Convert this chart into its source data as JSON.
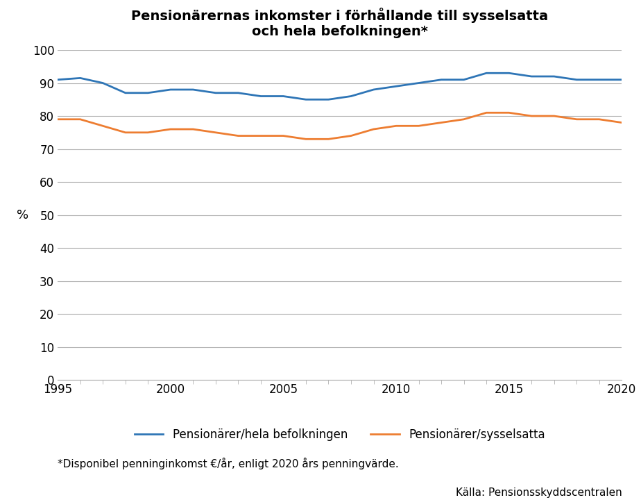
{
  "title_line1": "Pensionärernas inkomster i förhållande till sysselsatta",
  "title_line2": "och hela befolkningen*",
  "years": [
    1995,
    1996,
    1997,
    1998,
    1999,
    2000,
    2001,
    2002,
    2003,
    2004,
    2005,
    2006,
    2007,
    2008,
    2009,
    2010,
    2011,
    2012,
    2013,
    2014,
    2015,
    2016,
    2017,
    2018,
    2019,
    2020
  ],
  "hela_befolkningen": [
    91,
    91.5,
    90,
    87,
    87,
    88,
    88,
    87,
    87,
    86,
    86,
    85,
    85,
    86,
    88,
    89,
    90,
    91,
    91,
    93,
    93,
    92,
    92,
    91,
    91,
    91
  ],
  "sysselsatta": [
    79,
    79,
    77,
    75,
    75,
    76,
    76,
    75,
    74,
    74,
    74,
    73,
    73,
    74,
    76,
    77,
    77,
    78,
    79,
    81,
    81,
    80,
    80,
    79,
    79,
    78
  ],
  "blue_color": "#2E75B6",
  "orange_color": "#ED7D31",
  "ylabel": "%",
  "ylim_min": 0,
  "ylim_max": 100,
  "yticks": [
    0,
    10,
    20,
    30,
    40,
    50,
    60,
    70,
    80,
    90,
    100
  ],
  "xticks": [
    1995,
    2000,
    2005,
    2010,
    2015,
    2020
  ],
  "legend_label_blue": "Pensionärer/hela befolkningen",
  "legend_label_orange": "Pensionärer/sysselsatta",
  "footnote": "*Disponibel penninginkomst €/år, enligt 2020 års penningvärde.",
  "source": "Källa: Pensionsskyddscentralen",
  "background_color": "#FFFFFF",
  "grid_color": "#B0B0B0",
  "line_width": 2.0,
  "title_fontsize": 14,
  "axis_label_fontsize": 13,
  "tick_fontsize": 12,
  "legend_fontsize": 12,
  "footnote_fontsize": 11,
  "source_fontsize": 11
}
